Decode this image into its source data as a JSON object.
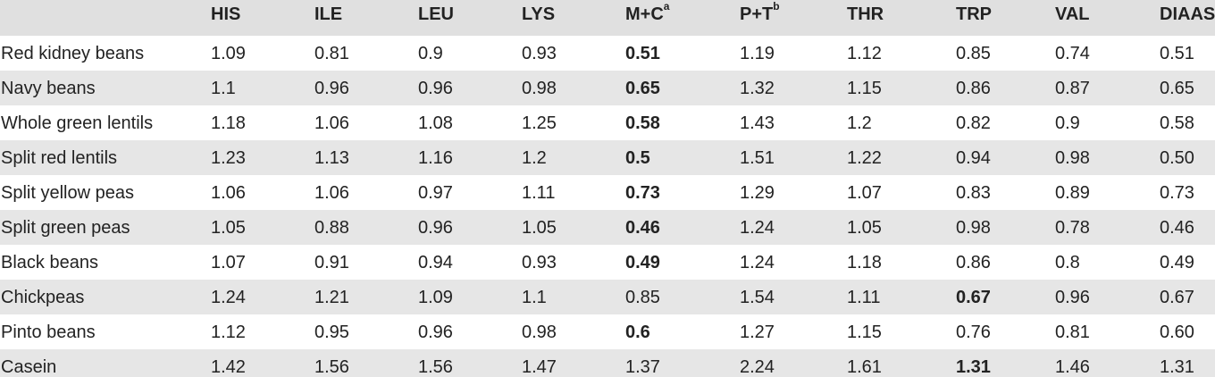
{
  "header": {
    "columns": [
      "",
      "HIS",
      "ILE",
      "LEU",
      "LYS",
      "M+C",
      "P+T",
      "THR",
      "TRP",
      "VAL",
      "DIAAS"
    ],
    "sup_mc": "a",
    "sup_pt": "b"
  },
  "rows": [
    {
      "name": "Red kidney beans",
      "values": [
        "1.09",
        "0.81",
        "0.9",
        "0.93",
        "0.51",
        "1.19",
        "1.12",
        "0.85",
        "0.74",
        "0.51"
      ],
      "bold_col": 4
    },
    {
      "name": "Navy beans",
      "values": [
        "1.1",
        "0.96",
        "0.96",
        "0.98",
        "0.65",
        "1.32",
        "1.15",
        "0.86",
        "0.87",
        "0.65"
      ],
      "bold_col": 4
    },
    {
      "name": "Whole green lentils",
      "values": [
        "1.18",
        "1.06",
        "1.08",
        "1.25",
        "0.58",
        "1.43",
        "1.2",
        "0.82",
        "0.9",
        "0.58"
      ],
      "bold_col": 4
    },
    {
      "name": "Split red lentils",
      "values": [
        "1.23",
        "1.13",
        "1.16",
        "1.2",
        "0.5",
        "1.51",
        "1.22",
        "0.94",
        "0.98",
        "0.50"
      ],
      "bold_col": 4
    },
    {
      "name": "Split yellow peas",
      "values": [
        "1.06",
        "1.06",
        "0.97",
        "1.11",
        "0.73",
        "1.29",
        "1.07",
        "0.83",
        "0.89",
        "0.73"
      ],
      "bold_col": 4
    },
    {
      "name": "Split green peas",
      "values": [
        "1.05",
        "0.88",
        "0.96",
        "1.05",
        "0.46",
        "1.24",
        "1.05",
        "0.98",
        "0.78",
        "0.46"
      ],
      "bold_col": 4
    },
    {
      "name": "Black beans",
      "values": [
        "1.07",
        "0.91",
        "0.94",
        "0.93",
        "0.49",
        "1.24",
        "1.18",
        "0.86",
        "0.8",
        "0.49"
      ],
      "bold_col": 4
    },
    {
      "name": "Chickpeas",
      "values": [
        "1.24",
        "1.21",
        "1.09",
        "1.1",
        "0.85",
        "1.54",
        "1.11",
        "0.67",
        "0.96",
        "0.67"
      ],
      "bold_col": 7
    },
    {
      "name": "Pinto beans",
      "values": [
        "1.12",
        "0.95",
        "0.96",
        "0.98",
        "0.6",
        "1.27",
        "1.15",
        "0.76",
        "0.81",
        "0.60"
      ],
      "bold_col": 4
    },
    {
      "name": "Casein",
      "values": [
        "1.42",
        "1.56",
        "1.56",
        "1.47",
        "1.37",
        "2.24",
        "1.61",
        "1.31",
        "1.46",
        "1.31"
      ],
      "bold_col": 7
    }
  ]
}
